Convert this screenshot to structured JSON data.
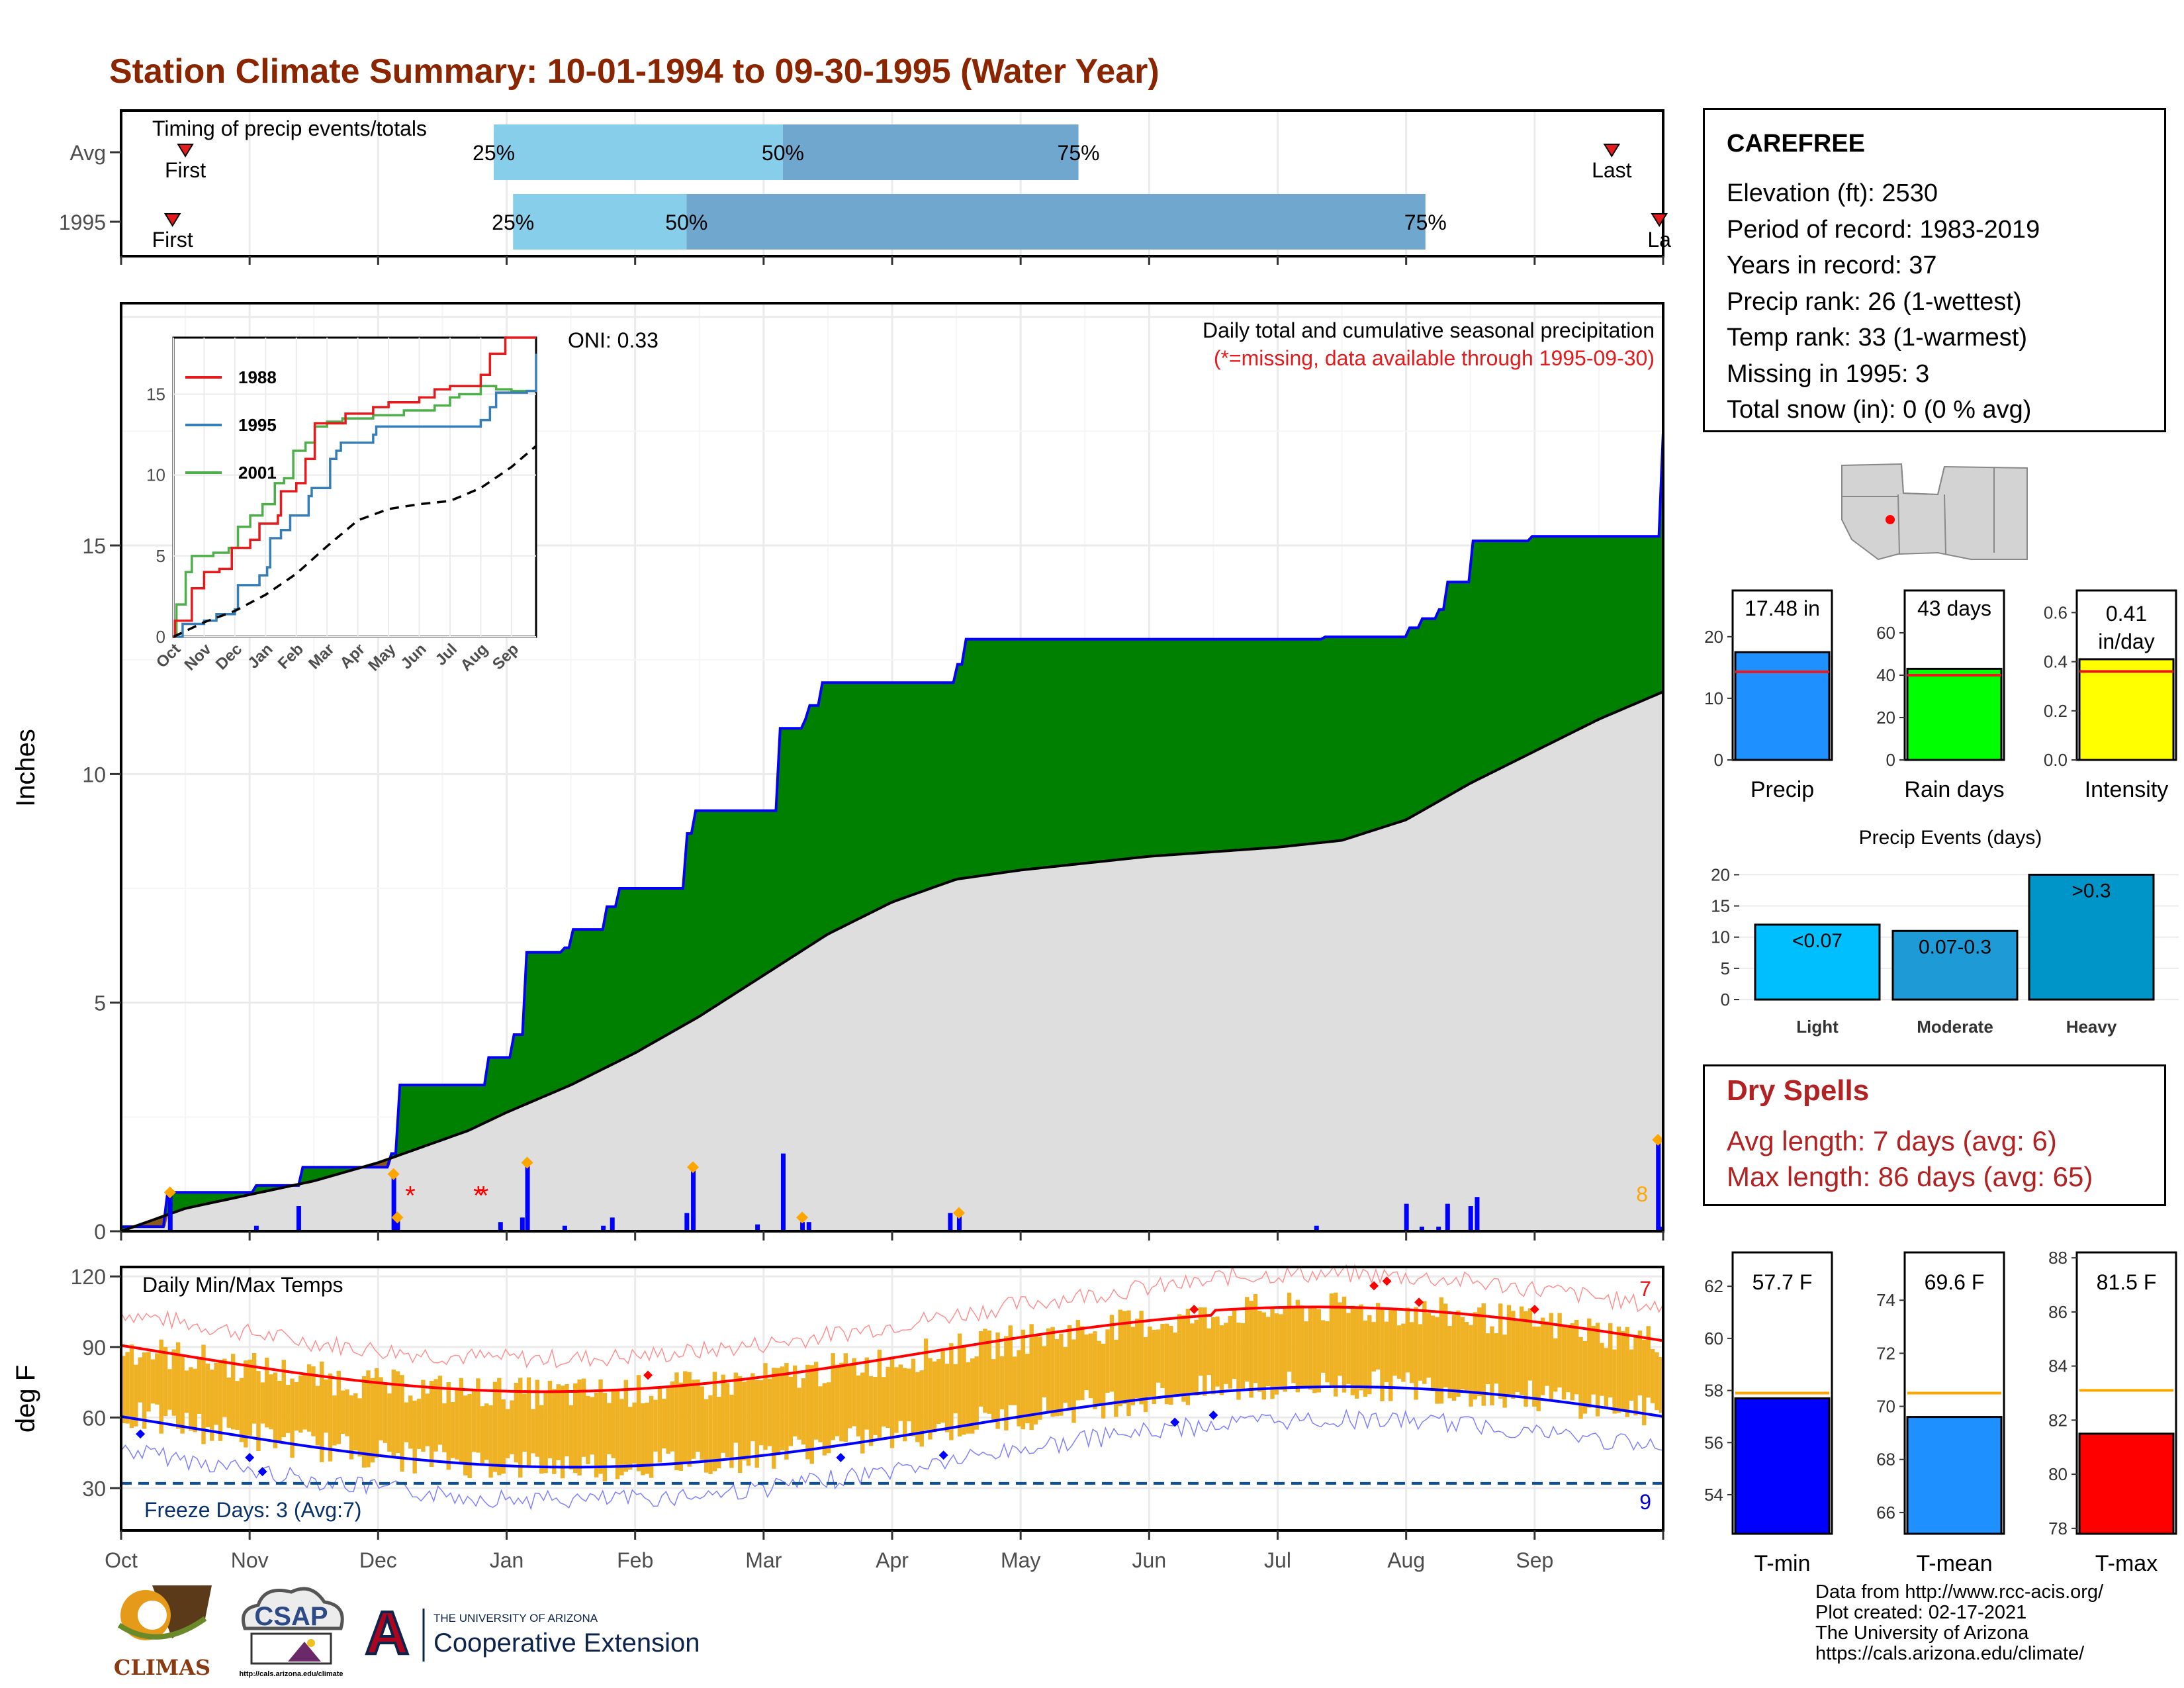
{
  "title": "Station Climate Summary: 10-01-1994 to 09-30-1995 (Water Year)",
  "timing": {
    "label": "Timing of precip events/totals",
    "rows": [
      {
        "name": "Avg",
        "first_label": "First",
        "last_label": "Last",
        "first_month": 0.5,
        "last_month": 11.6,
        "p25": 2.9,
        "p50": 5.15,
        "p75": 7.45,
        "p25_label": "25%",
        "p50_label": "50%",
        "p75_label": "75%"
      },
      {
        "name": "1995",
        "first_label": "First",
        "last_label": "La",
        "first_month": 0.4,
        "last_month": 11.97,
        "p25": 3.05,
        "p50": 4.4,
        "p75": 10.15,
        "p25_label": "25%",
        "p50_label": "50%",
        "p75_label": "75%"
      }
    ],
    "colors": {
      "light": "#87ceeb",
      "dark": "#6fa7cf",
      "marker": "#e41a1c"
    }
  },
  "precip": {
    "ylabel": "Inches",
    "oni": "ONI: 0.33",
    "annotation_1": "Daily total and cumulative seasonal precipitation",
    "annotation_2": "(*=missing, data available through 1995-09-30)",
    "corner_count": "8",
    "y_ticks": [
      "0",
      "5",
      "10",
      "15"
    ],
    "months": [
      "Oct",
      "Nov",
      "Dec",
      "Jan",
      "Feb",
      "Mar",
      "Apr",
      "May",
      "Jun",
      "Jul",
      "Aug",
      "Sep"
    ]
  },
  "inset": {
    "legend": [
      "1988",
      "1995",
      "2001"
    ],
    "y_ticks": [
      "0",
      "5",
      "10",
      "15"
    ],
    "months": [
      "Oct",
      "Nov",
      "Dec",
      "Jan",
      "Feb",
      "Mar",
      "Apr",
      "May",
      "Jun",
      "Jul",
      "Aug",
      "Sep"
    ]
  },
  "temps": {
    "label": "Daily Min/Max Temps",
    "ylabel": "deg F",
    "freeze_label": "Freeze Days: 3 (Avg:7)",
    "max_count": "7",
    "min_count": "9",
    "y_ticks": [
      "30",
      "60",
      "90",
      "120"
    ]
  },
  "station": {
    "name": "CAREFREE",
    "lines": [
      "Elevation (ft): 2530",
      "Period of record: 1983-2019",
      "Years in record: 37",
      "Precip rank: 26 (1-wettest)",
      "Temp rank: 33 (1-warmest)",
      "Missing in 1995: 3",
      "Total snow (in): 0 (0 % avg)"
    ]
  },
  "summary_bars": [
    {
      "label": "Precip",
      "value_label": "17.48 in",
      "value": 17.48,
      "avg": 14.3,
      "max": 27.5,
      "ticks": [
        "0",
        "10",
        "20"
      ],
      "tick_values": [
        0,
        10,
        20
      ],
      "color": "#1e90ff"
    },
    {
      "label": "Rain days",
      "value_label": "43 days",
      "value": 43,
      "avg": 40,
      "max": 80,
      "ticks": [
        "0",
        "20",
        "40",
        "60"
      ],
      "tick_values": [
        0,
        20,
        40,
        60
      ],
      "color": "#00ff00"
    },
    {
      "label": "Intensity",
      "value_label": "0.41 in/day",
      "value": 0.41,
      "avg": 0.36,
      "max": 0.69,
      "ticks": [
        "0.0",
        "0.2",
        "0.4",
        "0.6"
      ],
      "tick_values": [
        0,
        0.2,
        0.4,
        0.6
      ],
      "color": "#ffff00"
    }
  ],
  "events": {
    "title": "Precip Events (days)",
    "categories": [
      "Light",
      "Moderate",
      "Heavy"
    ],
    "values": [
      12,
      11,
      20
    ],
    "labels": [
      "<0.07",
      "0.07-0.3",
      ">0.3"
    ],
    "colors": [
      "#00bfff",
      "#1e9bd7",
      "#0095c8"
    ],
    "ticks": [
      "0",
      "5",
      "10",
      "15",
      "20"
    ]
  },
  "dry_spells": {
    "title": "Dry Spells",
    "avg_line": "Avg length: 7 days (avg: 6)",
    "max_line": "Max length: 86 days (avg: 65)"
  },
  "temp_bars": [
    {
      "label": "T-min",
      "value_label": "57.7 F",
      "value": 57.7,
      "avg": 57.9,
      "ymin": 52.5,
      "ymax": 63.3,
      "ticks": [
        "54",
        "56",
        "58",
        "60",
        "62"
      ],
      "tick_values": [
        54,
        56,
        58,
        60,
        62
      ],
      "color": "#0000ff"
    },
    {
      "label": "T-mean",
      "value_label": "69.6 F",
      "value": 69.6,
      "avg": 70.5,
      "ymin": 65.2,
      "ymax": 75.8,
      "ticks": [
        "66",
        "68",
        "70",
        "72",
        "74"
      ],
      "tick_values": [
        66,
        68,
        70,
        72,
        74
      ],
      "color": "#1e90ff"
    },
    {
      "label": "T-max",
      "value_label": "81.5 F",
      "value": 81.5,
      "avg": 83.1,
      "ymin": 77.8,
      "ymax": 88.2,
      "ticks": [
        "78",
        "80",
        "82",
        "84",
        "86",
        "88"
      ],
      "tick_values": [
        78,
        80,
        82,
        84,
        86,
        88
      ],
      "color": "#ff0000"
    }
  ],
  "logos": {
    "climas": "CLIMAS",
    "csap": "CSAP",
    "csap_url": "http://cals.arizona.edu/climate",
    "ua_small": "THE UNIVERSITY OF ARIZONA",
    "ua_big": "Cooperative Extension"
  },
  "credits": [
    "Data from http://www.rcc-acis.org/",
    "Plot created: 02-17-2021",
    "The University of Arizona",
    "https://cals.arizona.edu/climate/"
  ]
}
